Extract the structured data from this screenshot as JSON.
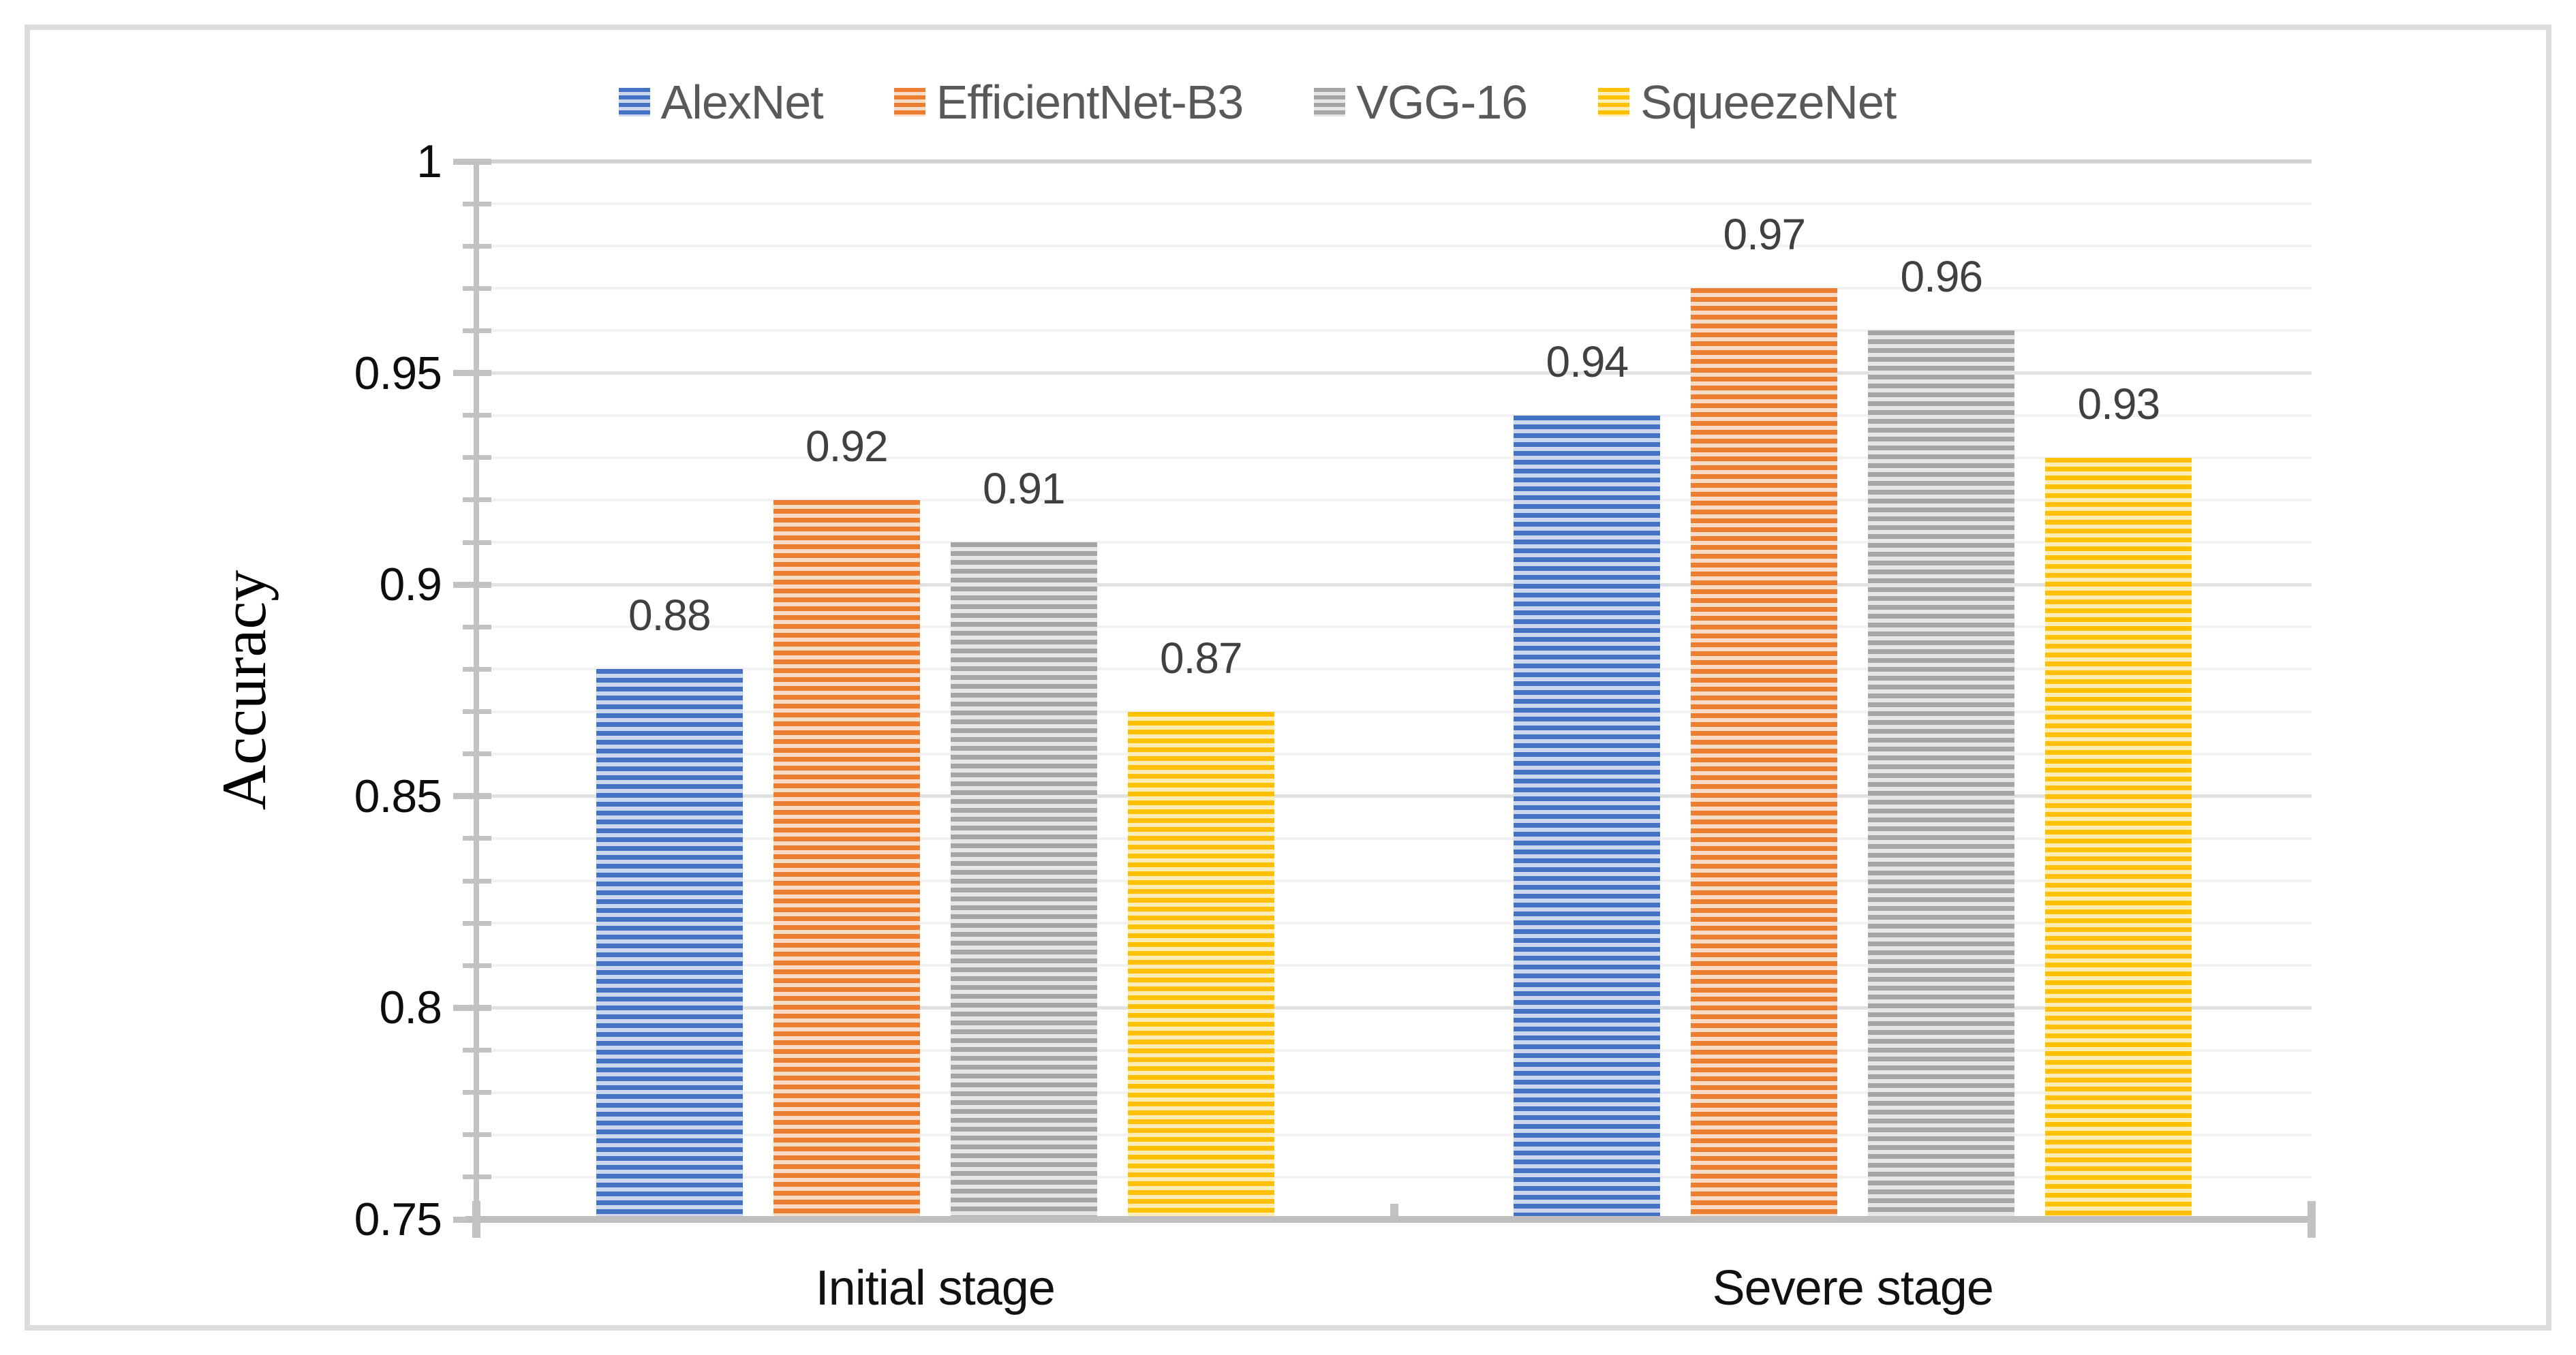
{
  "chart_data": {
    "type": "bar",
    "title": "",
    "xlabel": "",
    "ylabel": "Accuracy",
    "categories": [
      "Initial stage",
      "Severe stage"
    ],
    "series": [
      {
        "name": "AlexNet",
        "color": "#4472C4",
        "values": [
          0.88,
          0.94
        ]
      },
      {
        "name": "EfficientNet-B3",
        "color": "#ED7D31",
        "values": [
          0.92,
          0.97
        ]
      },
      {
        "name": "VGG-16",
        "color": "#A5A5A5",
        "values": [
          0.91,
          0.96
        ]
      },
      {
        "name": "SqueezeNet",
        "color": "#FFC000",
        "values": [
          0.87,
          0.93
        ]
      }
    ],
    "data_labels": [
      [
        "0.88",
        "0.92",
        "0.91",
        "0.87"
      ],
      [
        "0.94",
        "0.97",
        "0.96",
        "0.93"
      ]
    ],
    "ylim": [
      0.75,
      1.0
    ],
    "yticks": [
      "0.75",
      "0.8",
      "0.85",
      "0.9",
      "0.95",
      "1"
    ],
    "ytick_values": [
      0.75,
      0.8,
      0.85,
      0.9,
      0.95,
      1
    ],
    "minor_grid_step": 0.01,
    "grid": "horizontal-minor-and-major",
    "legend_position": "top-center",
    "bar_pattern": "horizontal-stripes",
    "axis_color": "#c2c2c2",
    "minor_grid_color": "#f2f2f2",
    "major_grid_color": "#e1e1e1",
    "legend_text_color": "#595959",
    "data_label_color": "#404040"
  }
}
